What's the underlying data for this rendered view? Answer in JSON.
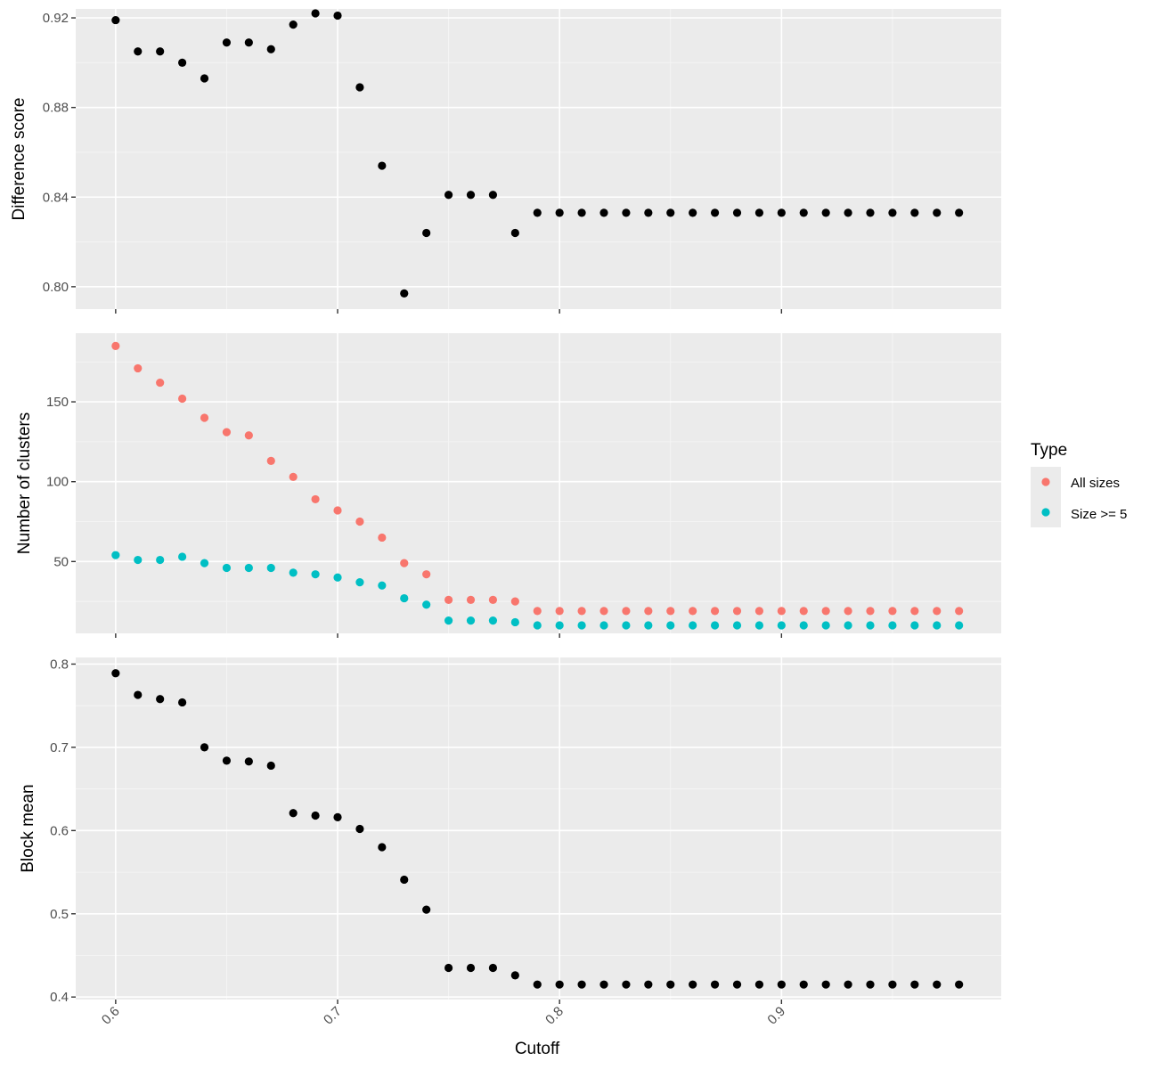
{
  "chart_data": [
    {
      "type": "scatter",
      "panel": "top",
      "ylabel": "Difference score",
      "xlim": [
        0.582,
        0.999
      ],
      "ylim": [
        0.79,
        0.924
      ],
      "x_ticks": [
        0.6,
        0.7,
        0.8,
        0.9
      ],
      "y_ticks": [
        0.8,
        0.84,
        0.88,
        0.92
      ],
      "y_tick_labels": [
        "0.80",
        "0.84",
        "0.88",
        "0.92"
      ],
      "grid": true,
      "series": [
        {
          "color": "#000000",
          "x": [
            0.6,
            0.61,
            0.62,
            0.63,
            0.64,
            0.65,
            0.66,
            0.67,
            0.68,
            0.69,
            0.7,
            0.71,
            0.72,
            0.73,
            0.74,
            0.75,
            0.76,
            0.77,
            0.78,
            0.79,
            0.8,
            0.81,
            0.82,
            0.83,
            0.84,
            0.85,
            0.86,
            0.87,
            0.88,
            0.89,
            0.9,
            0.91,
            0.92,
            0.93,
            0.94,
            0.95,
            0.96,
            0.97,
            0.98
          ],
          "y": [
            0.919,
            0.905,
            0.905,
            0.9,
            0.893,
            0.909,
            0.909,
            0.906,
            0.917,
            0.922,
            0.921,
            0.889,
            0.854,
            0.797,
            0.824,
            0.841,
            0.841,
            0.841,
            0.824,
            0.833,
            0.833,
            0.833,
            0.833,
            0.833,
            0.833,
            0.833,
            0.833,
            0.833,
            0.833,
            0.833,
            0.833,
            0.833,
            0.833,
            0.833,
            0.833,
            0.833,
            0.833,
            0.833,
            0.833
          ]
        }
      ]
    },
    {
      "type": "scatter",
      "panel": "middle",
      "ylabel": "Number of clusters",
      "xlim": [
        0.582,
        0.999
      ],
      "ylim": [
        5,
        193
      ],
      "x_ticks": [
        0.6,
        0.7,
        0.8,
        0.9
      ],
      "y_ticks": [
        50,
        100,
        150
      ],
      "y_tick_labels": [
        "50",
        "100",
        "150"
      ],
      "grid": true,
      "legend": {
        "title": "Type",
        "position": "right",
        "entries": [
          "All sizes",
          "Size >= 5"
        ]
      },
      "series": [
        {
          "name": "All sizes",
          "color": "#F8766D",
          "x": [
            0.6,
            0.61,
            0.62,
            0.63,
            0.64,
            0.65,
            0.66,
            0.67,
            0.68,
            0.69,
            0.7,
            0.71,
            0.72,
            0.73,
            0.74,
            0.75,
            0.76,
            0.77,
            0.78,
            0.79,
            0.8,
            0.81,
            0.82,
            0.83,
            0.84,
            0.85,
            0.86,
            0.87,
            0.88,
            0.89,
            0.9,
            0.91,
            0.92,
            0.93,
            0.94,
            0.95,
            0.96,
            0.97,
            0.98
          ],
          "y": [
            185,
            171,
            162,
            152,
            140,
            131,
            129,
            113,
            103,
            89,
            82,
            75,
            65,
            49,
            42,
            26,
            26,
            26,
            25,
            19,
            19,
            19,
            19,
            19,
            19,
            19,
            19,
            19,
            19,
            19,
            19,
            19,
            19,
            19,
            19,
            19,
            19,
            19,
            19
          ]
        },
        {
          "name": "Size >= 5",
          "color": "#00BFC4",
          "x": [
            0.6,
            0.61,
            0.62,
            0.63,
            0.64,
            0.65,
            0.66,
            0.67,
            0.68,
            0.69,
            0.7,
            0.71,
            0.72,
            0.73,
            0.74,
            0.75,
            0.76,
            0.77,
            0.78,
            0.79,
            0.8,
            0.81,
            0.82,
            0.83,
            0.84,
            0.85,
            0.86,
            0.87,
            0.88,
            0.89,
            0.9,
            0.91,
            0.92,
            0.93,
            0.94,
            0.95,
            0.96,
            0.97,
            0.98
          ],
          "y": [
            54,
            51,
            51,
            53,
            49,
            46,
            46,
            46,
            43,
            42,
            40,
            37,
            35,
            27,
            23,
            13,
            13,
            13,
            12,
            10,
            10,
            10,
            10,
            10,
            10,
            10,
            10,
            10,
            10,
            10,
            10,
            10,
            10,
            10,
            10,
            10,
            10,
            10,
            10
          ]
        }
      ]
    },
    {
      "type": "scatter",
      "panel": "bottom",
      "ylabel": "Block mean",
      "xlabel": "Cutoff",
      "xlim": [
        0.582,
        0.999
      ],
      "ylim": [
        0.397,
        0.808
      ],
      "x_ticks": [
        0.6,
        0.7,
        0.8,
        0.9
      ],
      "x_tick_labels": [
        "0.6",
        "0.7",
        "0.8",
        "0.9"
      ],
      "y_ticks": [
        0.4,
        0.5,
        0.6,
        0.7,
        0.8
      ],
      "y_tick_labels": [
        "0.4",
        "0.5",
        "0.6",
        "0.7",
        "0.8"
      ],
      "grid": true,
      "series": [
        {
          "color": "#000000",
          "x": [
            0.6,
            0.61,
            0.62,
            0.63,
            0.64,
            0.65,
            0.66,
            0.67,
            0.68,
            0.69,
            0.7,
            0.71,
            0.72,
            0.73,
            0.74,
            0.75,
            0.76,
            0.77,
            0.78,
            0.79,
            0.8,
            0.81,
            0.82,
            0.83,
            0.84,
            0.85,
            0.86,
            0.87,
            0.88,
            0.89,
            0.9,
            0.91,
            0.92,
            0.93,
            0.94,
            0.95,
            0.96,
            0.97,
            0.98
          ],
          "y": [
            0.789,
            0.763,
            0.758,
            0.754,
            0.7,
            0.684,
            0.683,
            0.678,
            0.621,
            0.618,
            0.616,
            0.602,
            0.58,
            0.541,
            0.505,
            0.435,
            0.435,
            0.435,
            0.426,
            0.415,
            0.415,
            0.415,
            0.415,
            0.415,
            0.415,
            0.415,
            0.415,
            0.415,
            0.415,
            0.415,
            0.415,
            0.415,
            0.415,
            0.415,
            0.415,
            0.415,
            0.415,
            0.415,
            0.415
          ]
        }
      ]
    }
  ]
}
